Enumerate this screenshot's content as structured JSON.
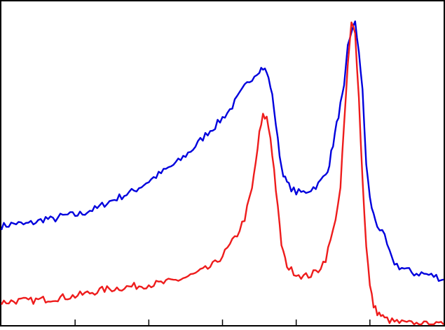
{
  "chart_data": {
    "type": "line",
    "title": "",
    "xlabel": "",
    "ylabel": "",
    "xlim": [
      0,
      120
    ],
    "ylim": [
      0,
      1
    ],
    "grid": false,
    "x_ticks": [
      0,
      20,
      40,
      60,
      80,
      100,
      120
    ],
    "tick_labels": [],
    "series": [
      {
        "color": "#0000dd",
        "x": [
          0,
          2,
          4,
          6,
          8,
          10,
          12,
          14,
          16,
          18,
          20,
          22,
          24,
          26,
          28,
          30,
          32,
          34,
          36,
          38,
          40,
          42,
          44,
          46,
          48,
          50,
          52,
          54,
          56,
          58,
          60,
          62,
          64,
          66,
          68,
          70,
          71,
          72,
          73,
          74,
          75,
          76,
          77,
          78,
          80,
          82,
          84,
          86,
          88,
          89,
          90,
          91,
          92,
          93,
          94,
          95,
          96,
          97,
          98,
          99,
          100,
          101,
          102,
          104,
          106,
          108,
          110,
          112,
          114,
          116,
          118,
          120
        ],
        "values": [
          0.305,
          0.31,
          0.315,
          0.31,
          0.315,
          0.32,
          0.33,
          0.325,
          0.335,
          0.34,
          0.34,
          0.345,
          0.355,
          0.36,
          0.375,
          0.385,
          0.395,
          0.405,
          0.415,
          0.43,
          0.445,
          0.46,
          0.475,
          0.49,
          0.505,
          0.525,
          0.545,
          0.57,
          0.595,
          0.615,
          0.64,
          0.665,
          0.7,
          0.735,
          0.765,
          0.79,
          0.795,
          0.78,
          0.74,
          0.67,
          0.57,
          0.49,
          0.45,
          0.43,
          0.41,
          0.41,
          0.42,
          0.435,
          0.465,
          0.5,
          0.56,
          0.62,
          0.68,
          0.73,
          0.86,
          0.91,
          0.93,
          0.85,
          0.72,
          0.5,
          0.39,
          0.34,
          0.31,
          0.27,
          0.2,
          0.18,
          0.17,
          0.16,
          0.16,
          0.155,
          0.15,
          0.14
        ]
      },
      {
        "color": "#ee1c1c",
        "x": [
          0,
          4,
          8,
          12,
          16,
          20,
          24,
          28,
          32,
          36,
          40,
          44,
          48,
          52,
          56,
          58,
          60,
          62,
          64,
          66,
          68,
          69,
          70,
          71,
          72,
          73,
          74,
          75,
          76,
          77,
          78,
          80,
          82,
          84,
          86,
          88,
          90,
          92,
          93,
          94,
          95,
          96,
          97,
          98,
          99,
          100,
          101,
          102,
          103,
          104,
          106,
          108,
          110,
          112,
          114,
          116,
          118,
          120
        ],
        "values": [
          0.07,
          0.075,
          0.075,
          0.08,
          0.085,
          0.09,
          0.1,
          0.11,
          0.115,
          0.12,
          0.125,
          0.13,
          0.14,
          0.155,
          0.175,
          0.19,
          0.215,
          0.245,
          0.28,
          0.33,
          0.42,
          0.5,
          0.59,
          0.645,
          0.64,
          0.58,
          0.48,
          0.36,
          0.25,
          0.2,
          0.175,
          0.16,
          0.15,
          0.155,
          0.17,
          0.205,
          0.29,
          0.42,
          0.62,
          0.8,
          0.93,
          0.91,
          0.7,
          0.45,
          0.25,
          0.12,
          0.06,
          0.04,
          0.03,
          0.02,
          0.012,
          0.008,
          0.005,
          0.003,
          0.002,
          0.001,
          0.0,
          0.0
        ]
      }
    ]
  }
}
